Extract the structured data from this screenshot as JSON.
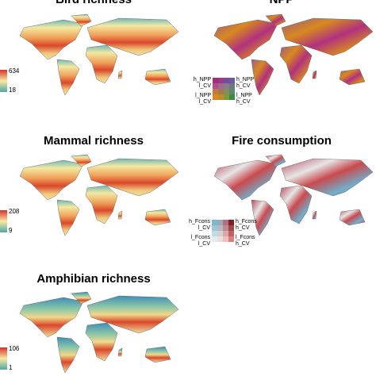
{
  "panels": [
    {
      "title": "Bird richness",
      "legend": {
        "max": 634,
        "min": 18
      }
    },
    {
      "title": "NPP",
      "legend": {
        "top_left": "h_NPP\nl_CV",
        "top_right": "h_NPP\nh_CV",
        "bottom_left": "l_NPP\nl_CV",
        "bottom_right": "l_NPP\nh_CV"
      }
    },
    {
      "title": "Mammal richness",
      "legend": {
        "max": 208,
        "min": 9
      }
    },
    {
      "title": "Fire consumption",
      "legend": {
        "top_left": "h_Fcons\nl_CV",
        "top_right": "h_Fcons\nh_CV",
        "bottom_left": "l_Fcons\nl_CV",
        "bottom_right": "l_Fcons\nh_CV"
      }
    },
    {
      "title": "Amphibian richness",
      "legend": {
        "max": 106,
        "min": 1
      }
    }
  ]
}
